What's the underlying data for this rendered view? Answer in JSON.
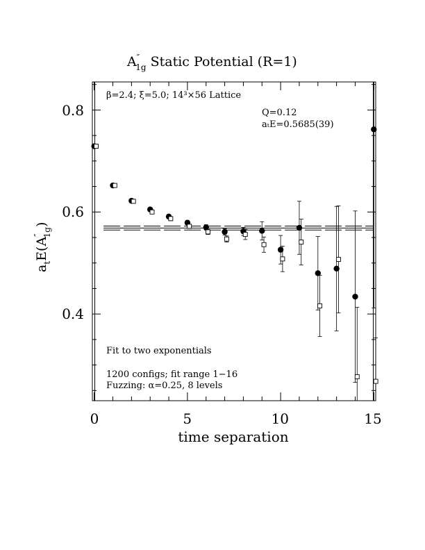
{
  "chart_data": {
    "type": "scatter",
    "title": {
      "main": "A",
      "sup": "″",
      "sub": "1g",
      "rest": " Static Potential (R=1)"
    },
    "xlabel": "time separation",
    "ylabel": {
      "main": "a",
      "sub1": "t",
      "mid": "E(A",
      "sup": "″",
      "sub2": "1g",
      "close": ")"
    },
    "xlim": [
      -0.1,
      15.1
    ],
    "ylim": [
      0.23,
      0.855
    ],
    "xticks": [
      0,
      5,
      10,
      15
    ],
    "xtick_labels": [
      "0",
      "5",
      "10",
      "15"
    ],
    "yticks": [
      0.4,
      0.6,
      0.8
    ],
    "ytick_labels": [
      "0.4",
      "0.6",
      "0.8"
    ],
    "annotations": {
      "lattice": "β=2.4; ξ=5.0; 14³×56 Lattice",
      "q": "Q=0.12",
      "ate": "aₜE=0.5685(39)",
      "fit": "Fit to two exponentials",
      "configs": "1200 configs; fit range 1−16",
      "fuzzing": "Fuzzing: α=0.25, 8 levels"
    },
    "fit": {
      "value": 0.5685,
      "err": 0.0039,
      "x_range": [
        0.5,
        15
      ]
    },
    "series": [
      {
        "marker": "filled-circle",
        "x": [
          0,
          1,
          2,
          3,
          4,
          5,
          6,
          7,
          8,
          9,
          10,
          11,
          12,
          13,
          14,
          15
        ],
        "y": [
          0.729,
          0.652,
          0.622,
          0.605,
          0.591,
          0.579,
          0.57,
          0.561,
          0.562,
          0.563,
          0.526,
          0.569,
          0.48,
          0.489,
          0.434,
          0.762
        ],
        "err": [
          0.002,
          0.003,
          0.003,
          0.003,
          0.004,
          0.004,
          0.005,
          0.006,
          0.008,
          0.018,
          0.028,
          0.052,
          0.072,
          0.122,
          0.168,
          0.35
        ]
      },
      {
        "marker": "open-square",
        "x": [
          0,
          1,
          2,
          3,
          4,
          5,
          6,
          7,
          8,
          9,
          10,
          11,
          12,
          13,
          14,
          15
        ],
        "y": [
          0.729,
          0.652,
          0.621,
          0.6,
          0.587,
          0.572,
          0.561,
          0.547,
          0.556,
          0.536,
          0.508,
          0.541,
          0.416,
          0.507,
          0.277,
          0.268
        ],
        "err": [
          0.002,
          0.002,
          0.003,
          0.003,
          0.004,
          0.004,
          0.005,
          0.006,
          0.01,
          0.015,
          0.025,
          0.045,
          0.06,
          0.105,
          0.136,
          0.085
        ]
      }
    ]
  }
}
